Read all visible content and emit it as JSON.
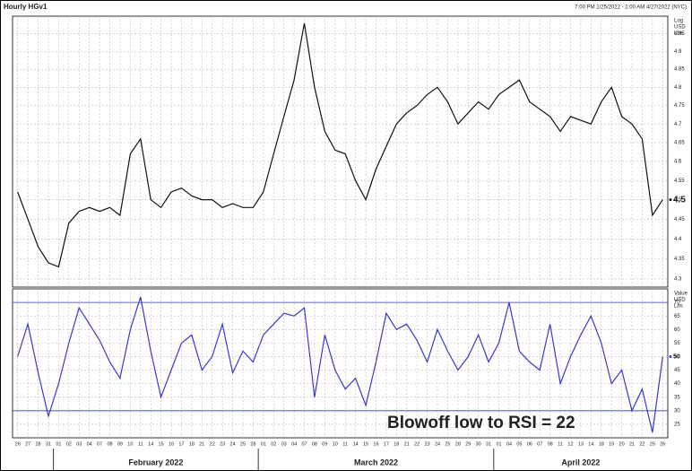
{
  "chart_data": {
    "type": "line",
    "title": "Hourly HGv1",
    "subtitle": "7:00 PM 1/25/2022 - 1:00 AM 4/27/2022 (NYC)",
    "annotation": "Blowoff low to RSI = 22",
    "categories": [
      "26",
      "27",
      "28",
      "31",
      "01",
      "02",
      "03",
      "04",
      "07",
      "08",
      "09",
      "10",
      "11",
      "14",
      "15",
      "16",
      "17",
      "18",
      "21",
      "22",
      "23",
      "24",
      "25",
      "28",
      "01",
      "02",
      "03",
      "04",
      "07",
      "08",
      "09",
      "10",
      "11",
      "14",
      "15",
      "16",
      "17",
      "18",
      "21",
      "22",
      "23",
      "24",
      "25",
      "28",
      "29",
      "30",
      "31",
      "01",
      "04",
      "05",
      "06",
      "07",
      "08",
      "11",
      "12",
      "13",
      "14",
      "18",
      "19",
      "20",
      "21",
      "22",
      "25",
      "26"
    ],
    "months": [
      "February 2022",
      "March 2022",
      "April 2022"
    ],
    "panels": [
      {
        "axis_label": [
          "Log",
          "USD",
          "Lbs"
        ],
        "log": true,
        "color": "#111111",
        "values": [
          4.52,
          4.45,
          4.38,
          4.34,
          4.33,
          4.44,
          4.47,
          4.48,
          4.47,
          4.48,
          4.46,
          4.62,
          4.66,
          4.5,
          4.48,
          4.52,
          4.53,
          4.51,
          4.5,
          4.5,
          4.48,
          4.49,
          4.48,
          4.48,
          4.52,
          4.62,
          4.72,
          4.82,
          4.98,
          4.8,
          4.68,
          4.63,
          4.62,
          4.55,
          4.5,
          4.58,
          4.64,
          4.7,
          4.73,
          4.75,
          4.78,
          4.8,
          4.76,
          4.7,
          4.73,
          4.76,
          4.74,
          4.78,
          4.8,
          4.82,
          4.76,
          4.74,
          4.72,
          4.68,
          4.72,
          4.71,
          4.7,
          4.76,
          4.8,
          4.72,
          4.7,
          4.66,
          4.46,
          4.5
        ],
        "ylim": [
          4.28,
          5.0
        ],
        "yticks": [
          4.3,
          4.35,
          4.4,
          4.45,
          4.5,
          4.55,
          4.6,
          4.65,
          4.7,
          4.75,
          4.8,
          4.85,
          4.9,
          4.95
        ]
      },
      {
        "axis_label": [
          "Value",
          "USD",
          "Lbs"
        ],
        "log": false,
        "color": "#3838d0",
        "values": [
          50,
          62,
          44,
          28,
          40,
          55,
          68,
          62,
          56,
          48,
          42,
          60,
          72,
          52,
          35,
          45,
          55,
          58,
          45,
          50,
          62,
          44,
          52,
          48,
          58,
          62,
          66,
          65,
          68,
          35,
          58,
          45,
          38,
          42,
          32,
          48,
          66,
          60,
          62,
          56,
          48,
          60,
          52,
          45,
          50,
          58,
          48,
          55,
          70,
          52,
          48,
          45,
          62,
          40,
          50,
          58,
          65,
          55,
          40,
          45,
          30,
          38,
          22,
          50
        ],
        "ylim": [
          20,
          75
        ],
        "yticks": [
          25,
          30,
          35,
          40,
          45,
          50,
          55,
          60,
          65,
          70
        ],
        "hlines": [
          30,
          70
        ]
      }
    ]
  }
}
